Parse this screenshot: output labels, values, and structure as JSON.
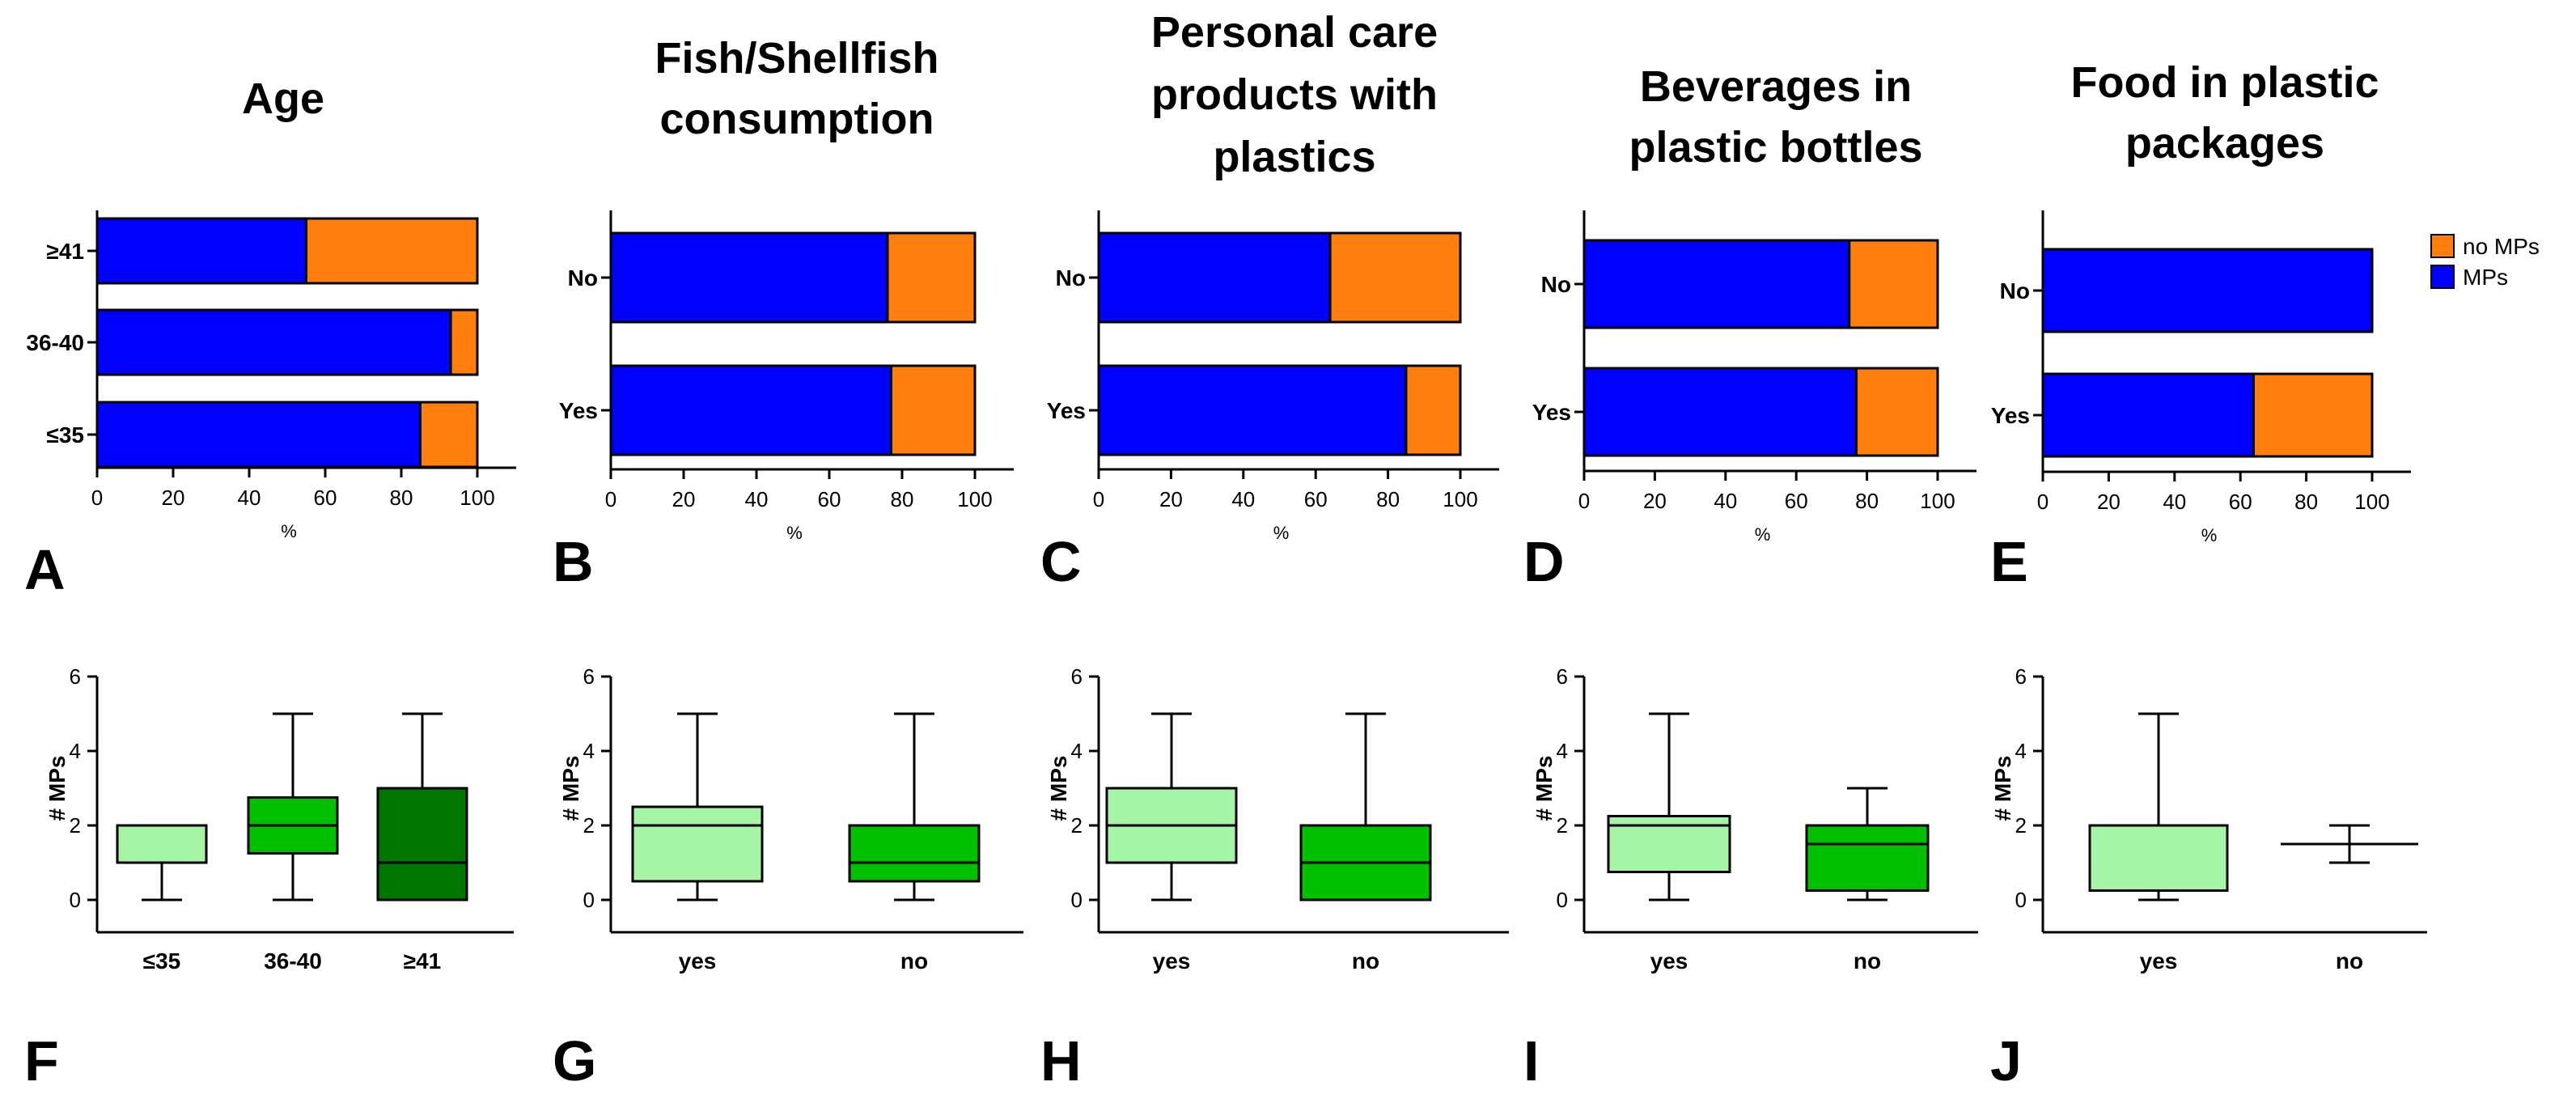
{
  "colors": {
    "mps": "#0000FF",
    "no_mps": "#FF7F0E",
    "box_light": "#A6F5A6",
    "box_mid": "#00C000",
    "box_dark": "#007500"
  },
  "legend": [
    {
      "label": "no MPs",
      "color": "#FF7F0E"
    },
    {
      "label": "MPs",
      "color": "#0000FF"
    }
  ],
  "chart_data": [
    {
      "type": "bar",
      "stacked": true,
      "orientation": "horizontal",
      "panel": "A",
      "title": [
        "Age"
      ],
      "xlabel": "%",
      "xlim": [
        0,
        100
      ],
      "xticks": [
        "0",
        "20",
        "40",
        "60",
        "80",
        "100"
      ],
      "categories": [
        "≥41",
        "36-40",
        "≤35"
      ],
      "series": [
        {
          "name": "MPs",
          "values": [
            55,
            93,
            85
          ]
        },
        {
          "name": "no MPs",
          "values": [
            45,
            7,
            15
          ]
        }
      ]
    },
    {
      "type": "bar",
      "stacked": true,
      "orientation": "horizontal",
      "panel": "B",
      "title": [
        "Fish/Shellfish",
        "consumption"
      ],
      "xlabel": "%",
      "xlim": [
        0,
        100
      ],
      "xticks": [
        "0",
        "20",
        "40",
        "60",
        "80",
        "100"
      ],
      "categories": [
        "No",
        "Yes"
      ],
      "series": [
        {
          "name": "MPs",
          "values": [
            76,
            77
          ]
        },
        {
          "name": "no MPs",
          "values": [
            24,
            23
          ]
        }
      ]
    },
    {
      "type": "bar",
      "stacked": true,
      "orientation": "horizontal",
      "panel": "C",
      "title": [
        "Personal care",
        "products with",
        "plastics"
      ],
      "xlabel": "%",
      "xlim": [
        0,
        100
      ],
      "xticks": [
        "0",
        "20",
        "40",
        "60",
        "80",
        "100"
      ],
      "categories": [
        "No",
        "Yes"
      ],
      "series": [
        {
          "name": "MPs",
          "values": [
            64,
            85
          ]
        },
        {
          "name": "no MPs",
          "values": [
            36,
            15
          ]
        }
      ]
    },
    {
      "type": "bar",
      "stacked": true,
      "orientation": "horizontal",
      "panel": "D",
      "title": [
        "Beverages in",
        "plastic bottles"
      ],
      "xlabel": "%",
      "xlim": [
        0,
        100
      ],
      "xticks": [
        "0",
        "20",
        "40",
        "60",
        "80",
        "100"
      ],
      "categories": [
        "No",
        "Yes"
      ],
      "series": [
        {
          "name": "MPs",
          "values": [
            75,
            77
          ]
        },
        {
          "name": "no MPs",
          "values": [
            25,
            23
          ]
        }
      ]
    },
    {
      "type": "bar",
      "stacked": true,
      "orientation": "horizontal",
      "panel": "E",
      "title": [
        "Food in  plastic",
        "packages"
      ],
      "xlabel": "%",
      "xlim": [
        0,
        100
      ],
      "xticks": [
        "0",
        "20",
        "40",
        "60",
        "80",
        "100"
      ],
      "categories": [
        "No",
        "Yes"
      ],
      "series": [
        {
          "name": "MPs",
          "values": [
            100,
            64
          ]
        },
        {
          "name": "no MPs",
          "values": [
            0,
            36
          ]
        }
      ]
    },
    {
      "type": "box",
      "panel": "F",
      "ylabel": "# MPs",
      "ylim": [
        0,
        6
      ],
      "yticks": [
        "0",
        "2",
        "4",
        "6"
      ],
      "boxes": [
        {
          "label": "≤35",
          "min": 0,
          "q1": 1,
          "median": 2,
          "q3": 2,
          "max": 2,
          "color": "#A6F5A6"
        },
        {
          "label": "36-40",
          "min": 0,
          "q1": 1.25,
          "median": 2,
          "q3": 2.75,
          "max": 5,
          "color": "#00C000"
        },
        {
          "label": "≥41",
          "min": 0,
          "q1": 0,
          "median": 1,
          "q3": 3,
          "max": 5,
          "color": "#007500"
        }
      ]
    },
    {
      "type": "box",
      "panel": "G",
      "ylabel": "# MPs",
      "ylim": [
        0,
        6
      ],
      "yticks": [
        "0",
        "2",
        "4",
        "6"
      ],
      "boxes": [
        {
          "label": "yes",
          "min": 0,
          "q1": 0.5,
          "median": 2,
          "q3": 2.5,
          "max": 5,
          "color": "#A6F5A6"
        },
        {
          "label": "no",
          "min": 0,
          "q1": 0.5,
          "median": 1,
          "q3": 2,
          "max": 5,
          "color": "#00C000"
        }
      ]
    },
    {
      "type": "box",
      "panel": "H",
      "ylabel": "# MPs",
      "ylim": [
        0,
        6
      ],
      "yticks": [
        "0",
        "2",
        "4",
        "6"
      ],
      "boxes": [
        {
          "label": "yes",
          "min": 0,
          "q1": 1,
          "median": 2,
          "q3": 3,
          "max": 5,
          "color": "#A6F5A6"
        },
        {
          "label": "no",
          "min": 0,
          "q1": 0,
          "median": 1,
          "q3": 2,
          "max": 5,
          "color": "#00C000"
        }
      ]
    },
    {
      "type": "box",
      "panel": "I",
      "ylabel": "# MPs",
      "ylim": [
        0,
        6
      ],
      "yticks": [
        "0",
        "2",
        "4",
        "6"
      ],
      "boxes": [
        {
          "label": "yes",
          "min": 0,
          "q1": 0.75,
          "median": 2,
          "q3": 2.25,
          "max": 5,
          "color": "#A6F5A6"
        },
        {
          "label": "no",
          "min": 0,
          "q1": 0.25,
          "median": 1.5,
          "q3": 2,
          "max": 3,
          "color": "#00C000"
        }
      ]
    },
    {
      "type": "box",
      "panel": "J",
      "ylabel": "# MPs",
      "ylim": [
        0,
        6
      ],
      "yticks": [
        "0",
        "2",
        "4",
        "6"
      ],
      "boxes": [
        {
          "label": "yes",
          "min": 0,
          "q1": 0.25,
          "median": 2,
          "q3": 2,
          "max": 5,
          "color": "#A6F5A6"
        },
        {
          "label": "no",
          "min": 1,
          "q1": 1.5,
          "median": 1.5,
          "q3": 1.5,
          "max": 2,
          "color": null
        }
      ]
    }
  ]
}
